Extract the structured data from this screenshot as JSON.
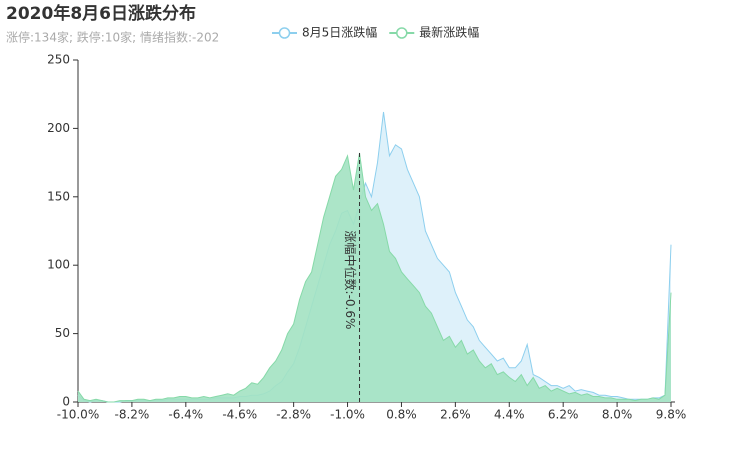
{
  "chart_data": {
    "type": "area",
    "title": "2020年8月6日涨跌分布",
    "subtitle": "涨停:134家; 跌停:10家; 情绪指数:-202",
    "x": [
      -10,
      -9.8,
      -9.6,
      -9.4,
      -9.2,
      -9,
      -8.8,
      -8.6,
      -8.4,
      -8.2,
      -8,
      -7.8,
      -7.6,
      -7.4,
      -7.2,
      -7,
      -6.8,
      -6.6,
      -6.4,
      -6.2,
      -6,
      -5.8,
      -5.6,
      -5.4,
      -5.2,
      -5,
      -4.8,
      -4.6,
      -4.4,
      -4.2,
      -4,
      -3.8,
      -3.6,
      -3.4,
      -3.2,
      -3,
      -2.8,
      -2.6,
      -2.4,
      -2.2,
      -2,
      -1.8,
      -1.6,
      -1.4,
      -1.2,
      -1,
      -0.8,
      -0.6,
      -0.4,
      -0.2,
      0,
      0.2,
      0.4,
      0.6,
      0.8,
      1,
      1.2,
      1.4,
      1.6,
      1.8,
      2,
      2.2,
      2.4,
      2.6,
      2.8,
      3,
      3.2,
      3.4,
      3.6,
      3.8,
      4,
      4.2,
      4.4,
      4.6,
      4.8,
      5,
      5.2,
      5.4,
      5.6,
      5.8,
      6,
      6.2,
      6.4,
      6.6,
      6.8,
      7,
      7.2,
      7.4,
      7.6,
      7.8,
      8,
      8.2,
      8.4,
      8.6,
      8.8,
      9,
      9.2,
      9.4,
      9.6,
      9.8
    ],
    "series": [
      {
        "name": "8月5日涨跌幅",
        "color": "#8dcfee",
        "fill": "#def1fa",
        "values": [
          5,
          1,
          0,
          1,
          1,
          0,
          0,
          0,
          1,
          1,
          1,
          1,
          1,
          1,
          1,
          2,
          2,
          2,
          2,
          2,
          2,
          2,
          2,
          3,
          3,
          3,
          3,
          4,
          4,
          5,
          5,
          6,
          8,
          12,
          15,
          22,
          28,
          40,
          55,
          70,
          85,
          100,
          115,
          125,
          138,
          140,
          130,
          145,
          160,
          150,
          175,
          212,
          180,
          188,
          185,
          170,
          160,
          150,
          125,
          115,
          105,
          100,
          95,
          80,
          70,
          60,
          55,
          45,
          40,
          35,
          30,
          32,
          25,
          25,
          30,
          42,
          20,
          18,
          15,
          12,
          12,
          10,
          12,
          8,
          9,
          8,
          7,
          5,
          5,
          4,
          4,
          3,
          2,
          2,
          2,
          2,
          3,
          3,
          5,
          115
        ]
      },
      {
        "name": "最新涨跌幅",
        "color": "#86d9a8",
        "fill": "#a3e2c2",
        "values": [
          8,
          2,
          1,
          2,
          1,
          0,
          0,
          1,
          1,
          1,
          2,
          2,
          1,
          2,
          2,
          3,
          3,
          4,
          4,
          3,
          3,
          4,
          3,
          4,
          5,
          6,
          5,
          8,
          10,
          14,
          13,
          18,
          25,
          30,
          38,
          50,
          57,
          75,
          88,
          95,
          115,
          135,
          150,
          165,
          170,
          180,
          155,
          182,
          150,
          140,
          145,
          130,
          110,
          105,
          95,
          90,
          85,
          80,
          70,
          65,
          55,
          45,
          48,
          40,
          45,
          35,
          38,
          30,
          25,
          28,
          20,
          22,
          18,
          15,
          20,
          12,
          18,
          10,
          12,
          8,
          10,
          8,
          6,
          7,
          5,
          6,
          4,
          4,
          3,
          3,
          2,
          2,
          2,
          1,
          2,
          2,
          3,
          2,
          5,
          80
        ]
      }
    ],
    "xlim": [
      -10,
      9.8
    ],
    "xticks": [
      {
        "value": -10,
        "label": "-10.0%"
      },
      {
        "value": -8.2,
        "label": "-8.2%"
      },
      {
        "value": -6.4,
        "label": "-6.4%"
      },
      {
        "value": -4.6,
        "label": "-4.6%"
      },
      {
        "value": -2.8,
        "label": "-2.8%"
      },
      {
        "value": -1,
        "label": "-1.0%"
      },
      {
        "value": 0.8,
        "label": "0.8%"
      },
      {
        "value": 2.6,
        "label": "2.6%"
      },
      {
        "value": 4.4,
        "label": "4.4%"
      },
      {
        "value": 6.2,
        "label": "6.2%"
      },
      {
        "value": 8,
        "label": "8.0%"
      },
      {
        "value": 9.8,
        "label": "9.8%"
      }
    ],
    "ylim": [
      0,
      250
    ],
    "yticks": [
      0,
      50,
      100,
      150,
      200,
      250
    ],
    "annotation": {
      "x": -0.6,
      "y": 183,
      "text": "涨幅中位数:-0.6%"
    }
  }
}
